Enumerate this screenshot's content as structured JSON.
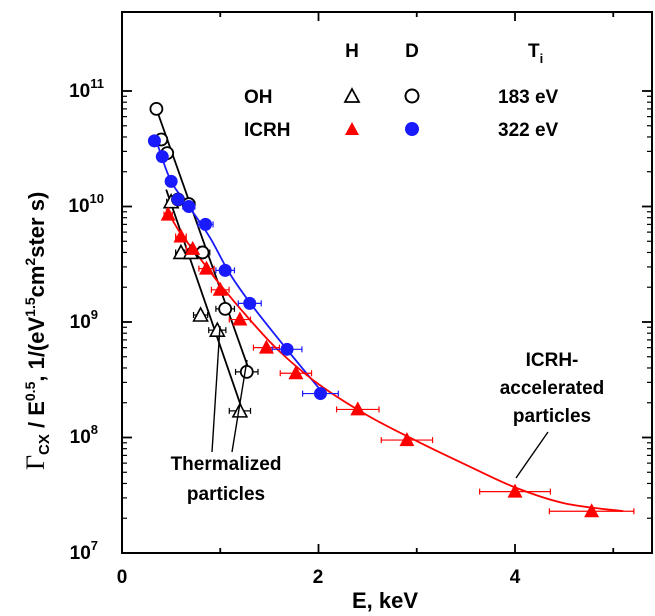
{
  "chart_data": {
    "type": "scatter",
    "xlabel": "E, keV",
    "ylabel_parts": {
      "main": "Γ",
      "sub_cx": "CX",
      "sep": " / E",
      "sup_05": "0.5",
      "unit_open": ", 1/(eV",
      "sup_15": "1.5",
      "cm": "cm",
      "sup_2": "2",
      "tail": "ster s)"
    },
    "xlim": [
      0,
      5.4
    ],
    "ylim_log10": [
      7,
      11.6
    ],
    "x_ticks": [
      {
        "value": 0,
        "label": "0"
      },
      {
        "value": 2,
        "label": "2"
      },
      {
        "value": 4,
        "label": "4"
      }
    ],
    "y_ticks": [
      {
        "exp": 7,
        "base": "10",
        "sup": "7"
      },
      {
        "exp": 8,
        "base": "10",
        "sup": "8"
      },
      {
        "exp": 9,
        "base": "10",
        "sup": "9"
      },
      {
        "exp": 10,
        "base": "10",
        "sup": "10"
      },
      {
        "exp": 11,
        "base": "10",
        "sup": "11"
      }
    ],
    "legend": {
      "col_h": "H",
      "col_d": "D",
      "col_t": "T",
      "col_t_sub": "i",
      "rows": [
        {
          "label": "OH",
          "ti": "183 eV"
        },
        {
          "label": "ICRH",
          "ti": "322 eV"
        }
      ]
    },
    "series": [
      {
        "key": "oh_h",
        "marker": "triangle-open",
        "color": "#000000",
        "points": [
          [
            0.5,
            11000000000.0
          ],
          [
            0.6,
            4000000000.0
          ],
          [
            0.7,
            4000000000.0
          ],
          [
            0.8,
            1150000000.0
          ],
          [
            0.97,
            850000000.0
          ],
          [
            1.2,
            170000000.0
          ]
        ]
      },
      {
        "key": "oh_d",
        "marker": "circle-open",
        "color": "#000000",
        "points": [
          [
            0.35,
            70000000000.0
          ],
          [
            0.4,
            38000000000.0
          ],
          [
            0.46,
            29000000000.0
          ],
          [
            0.57,
            11500000000.0
          ],
          [
            0.68,
            10500000000.0
          ],
          [
            0.82,
            4000000000.0
          ],
          [
            1.05,
            1300000000.0
          ],
          [
            1.27,
            370000000.0
          ]
        ]
      },
      {
        "key": "icrh_h",
        "marker": "triangle-filled",
        "color": "#ff0000",
        "points": [
          [
            0.47,
            8500000000.0
          ],
          [
            0.6,
            5500000000.0
          ],
          [
            0.72,
            4300000000.0
          ],
          [
            0.86,
            2900000000.0
          ],
          [
            1.0,
            1900000000.0
          ],
          [
            1.2,
            1050000000.0
          ],
          [
            1.47,
            600000000.0
          ],
          [
            1.77,
            360000000.0
          ],
          [
            2.4,
            175000000.0
          ],
          [
            2.9,
            95000000.0
          ],
          [
            4.0,
            34000000.0
          ],
          [
            4.78,
            23000000.0
          ]
        ]
      },
      {
        "key": "icrh_d",
        "marker": "circle-filled",
        "color": "#1a1aff",
        "points": [
          [
            0.33,
            37000000000.0
          ],
          [
            0.41,
            27000000000.0
          ],
          [
            0.5,
            16500000000.0
          ],
          [
            0.57,
            11500000000.0
          ],
          [
            0.68,
            10000000000.0
          ],
          [
            0.85,
            7000000000.0
          ],
          [
            1.05,
            2800000000.0
          ],
          [
            1.3,
            1450000000.0
          ],
          [
            1.68,
            580000000.0
          ],
          [
            2.02,
            240000000.0
          ]
        ]
      }
    ],
    "fit_lines": [
      {
        "key": "fit_oh_h",
        "color": "#000000",
        "points": [
          [
            0.45,
            14000000000.0
          ],
          [
            1.25,
            150000000.0
          ]
        ]
      },
      {
        "key": "fit_oh_d",
        "color": "#000000",
        "points": [
          [
            0.35,
            70000000000.0
          ],
          [
            1.3,
            370000000.0
          ]
        ]
      },
      {
        "key": "fit_icrh_d",
        "color": "#1a1aff",
        "points": [
          [
            0.35,
            37000000000.0
          ],
          [
            0.5,
            16500000000.0
          ],
          [
            0.7,
            9500000000.0
          ],
          [
            0.9,
            5300000000.0
          ],
          [
            1.1,
            2600000000.0
          ],
          [
            1.35,
            1300000000.0
          ],
          [
            1.7,
            550000000.0
          ],
          [
            2.05,
            240000000.0
          ]
        ]
      },
      {
        "key": "fit_icrh_h",
        "color": "#ff0000",
        "points": [
          [
            0.45,
            9500000000.0
          ],
          [
            0.6,
            5800000000.0
          ],
          [
            0.8,
            3500000000.0
          ],
          [
            1.0,
            2100000000.0
          ],
          [
            1.3,
            1050000000.0
          ],
          [
            1.6,
            560000000.0
          ],
          [
            2.0,
            290000000.0
          ],
          [
            2.5,
            155000000.0
          ],
          [
            3.0,
            93000000.0
          ],
          [
            3.5,
            58000000.0
          ],
          [
            4.0,
            37000000.0
          ],
          [
            4.5,
            27000000.0
          ],
          [
            5.1,
            23000000.0
          ]
        ]
      }
    ],
    "annotations": [
      {
        "key": "icrh_accel",
        "lines": [
          "ICRH-",
          "accelerated",
          "particles"
        ]
      },
      {
        "key": "thermalized",
        "lines": [
          "Thermalized",
          "particles"
        ]
      }
    ]
  }
}
